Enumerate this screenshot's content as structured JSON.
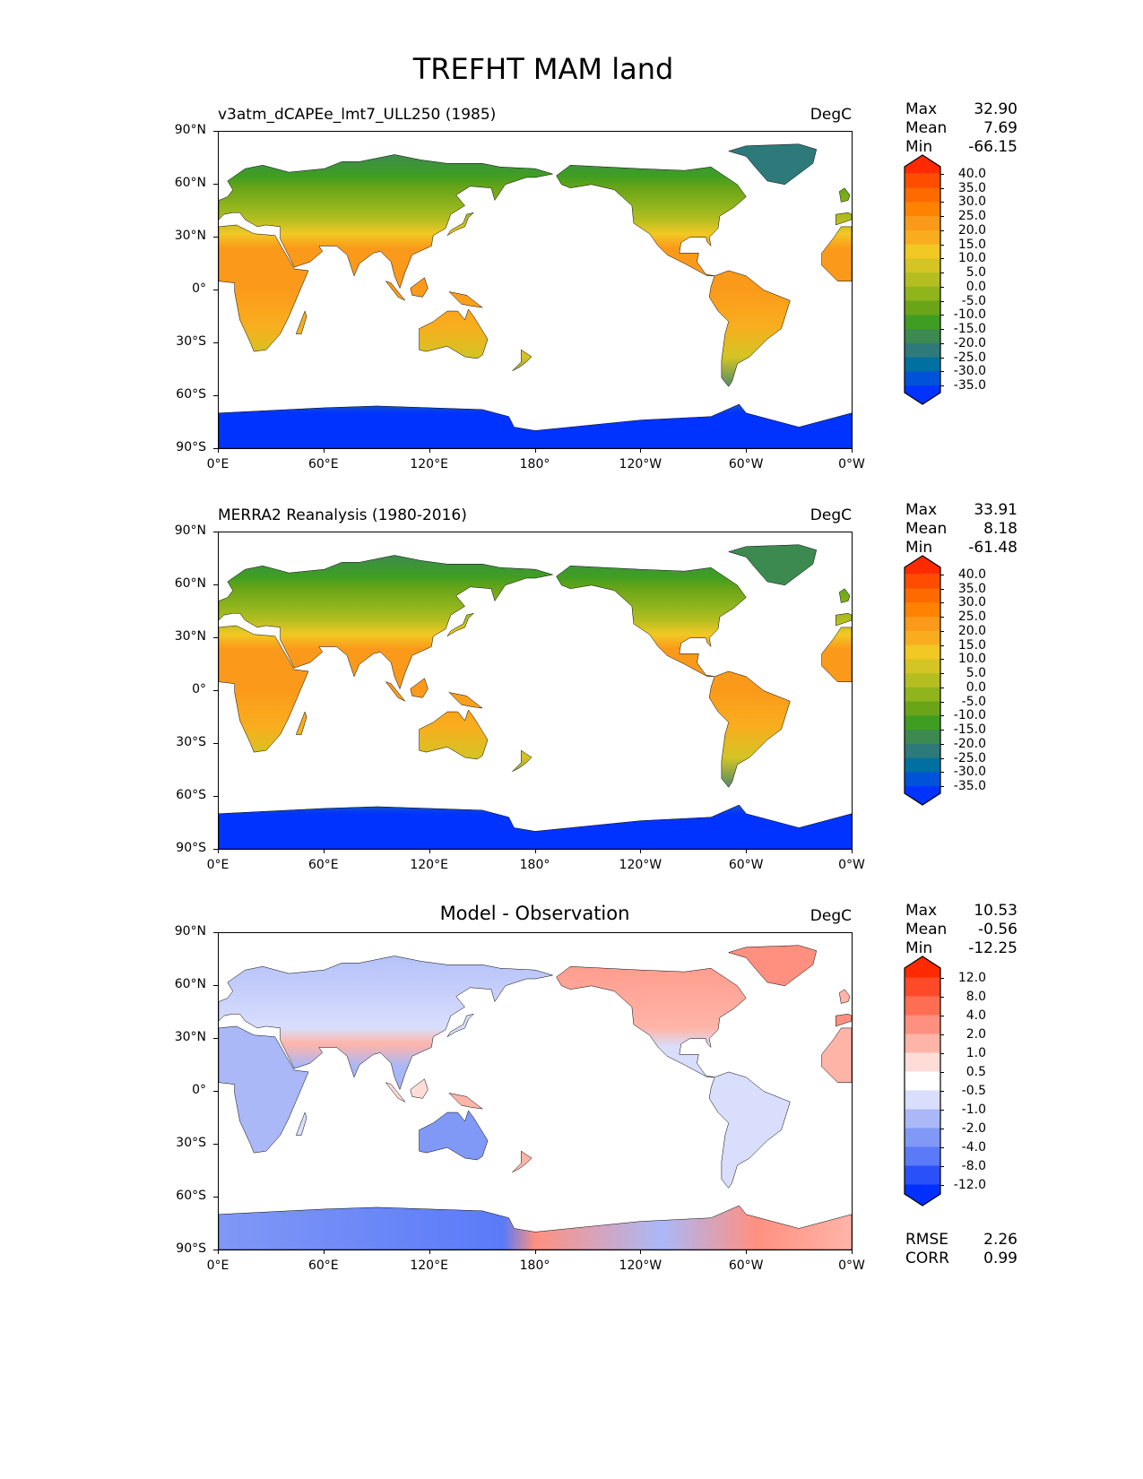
{
  "figure_title": "TREFHT MAM land",
  "chart_data": [
    {
      "type": "heatmap",
      "title": "v3atm_dCAPEe_lmt7_ULL250 (1985)",
      "units": "DegC",
      "stats": {
        "max_label": "Max",
        "max": "32.90",
        "mean_label": "Mean",
        "mean": "7.69",
        "min_label": "Min",
        "min": "-66.15"
      },
      "xticks": [
        "0°E",
        "60°E",
        "120°E",
        "180°",
        "120°W",
        "60°W",
        "0°W"
      ],
      "yticks": [
        "90°N",
        "60°N",
        "30°N",
        "0°",
        "30°S",
        "60°S",
        "90°S"
      ],
      "xlim": [
        0,
        360
      ],
      "ylim": [
        -90,
        90
      ],
      "colorbar": {
        "levels": [
          "40.0",
          "35.0",
          "30.0",
          "25.0",
          "20.0",
          "15.0",
          "10.0",
          "5.0",
          "0.0",
          "-5.0",
          "-10.0",
          "-15.0",
          "-20.0",
          "-25.0",
          "-30.0",
          "-35.0"
        ],
        "colors": [
          "#ff2a00",
          "#ff4d00",
          "#ff6a00",
          "#ff8200",
          "#fb9a1a",
          "#f9ad1e",
          "#f2c824",
          "#d4c424",
          "#b4be20",
          "#8fb41c",
          "#6aa418",
          "#3f9e22",
          "#3d8a50",
          "#2e7a7a",
          "#0070a0",
          "#0052d8",
          "#0033ff"
        ]
      },
      "palette": "abs"
    },
    {
      "type": "heatmap",
      "title": "MERRA2 Reanalysis (1980-2016)",
      "units": "DegC",
      "stats": {
        "max_label": "Max",
        "max": "33.91",
        "mean_label": "Mean",
        "mean": "8.18",
        "min_label": "Min",
        "min": "-61.48"
      },
      "xticks": [
        "0°E",
        "60°E",
        "120°E",
        "180°",
        "120°W",
        "60°W",
        "0°W"
      ],
      "yticks": [
        "90°N",
        "60°N",
        "30°N",
        "0°",
        "30°S",
        "60°S",
        "90°S"
      ],
      "xlim": [
        0,
        360
      ],
      "ylim": [
        -90,
        90
      ],
      "colorbar": {
        "levels": [
          "40.0",
          "35.0",
          "30.0",
          "25.0",
          "20.0",
          "15.0",
          "10.0",
          "5.0",
          "0.0",
          "-5.0",
          "-10.0",
          "-15.0",
          "-20.0",
          "-25.0",
          "-30.0",
          "-35.0"
        ],
        "colors": [
          "#ff2a00",
          "#ff4d00",
          "#ff6a00",
          "#ff8200",
          "#fb9a1a",
          "#f9ad1e",
          "#f2c824",
          "#d4c424",
          "#b4be20",
          "#8fb41c",
          "#6aa418",
          "#3f9e22",
          "#3d8a50",
          "#2e7a7a",
          "#0070a0",
          "#0052d8",
          "#0033ff"
        ]
      },
      "palette": "abs"
    },
    {
      "type": "heatmap",
      "title": "Model - Observation",
      "units": "DegC",
      "stats": {
        "max_label": "Max",
        "max": "10.53",
        "mean_label": "Mean",
        "mean": "-0.56",
        "min_label": "Min",
        "min": "-12.25"
      },
      "extra_stats": {
        "rmse_label": "RMSE",
        "rmse": "2.26",
        "corr_label": "CORR",
        "corr": "0.99"
      },
      "xticks": [
        "0°E",
        "60°E",
        "120°E",
        "180°",
        "120°W",
        "60°W",
        "0°W"
      ],
      "yticks": [
        "90°N",
        "60°N",
        "30°N",
        "0°",
        "30°S",
        "60°S",
        "90°S"
      ],
      "xlim": [
        0,
        360
      ],
      "ylim": [
        -90,
        90
      ],
      "colorbar": {
        "levels": [
          "12.0",
          "8.0",
          "4.0",
          "2.0",
          "1.0",
          "0.5",
          "-0.5",
          "-1.0",
          "-2.0",
          "-4.0",
          "-8.0",
          "-12.0"
        ],
        "colors": [
          "#ff2a00",
          "#ff4a2a",
          "#ff6e52",
          "#ff9080",
          "#ffb4a8",
          "#ffdcd8",
          "#ffffff",
          "#d8defc",
          "#aab8f8",
          "#8098f6",
          "#5a7af8",
          "#2a50fa",
          "#0030ff"
        ]
      },
      "palette": "diff"
    }
  ]
}
